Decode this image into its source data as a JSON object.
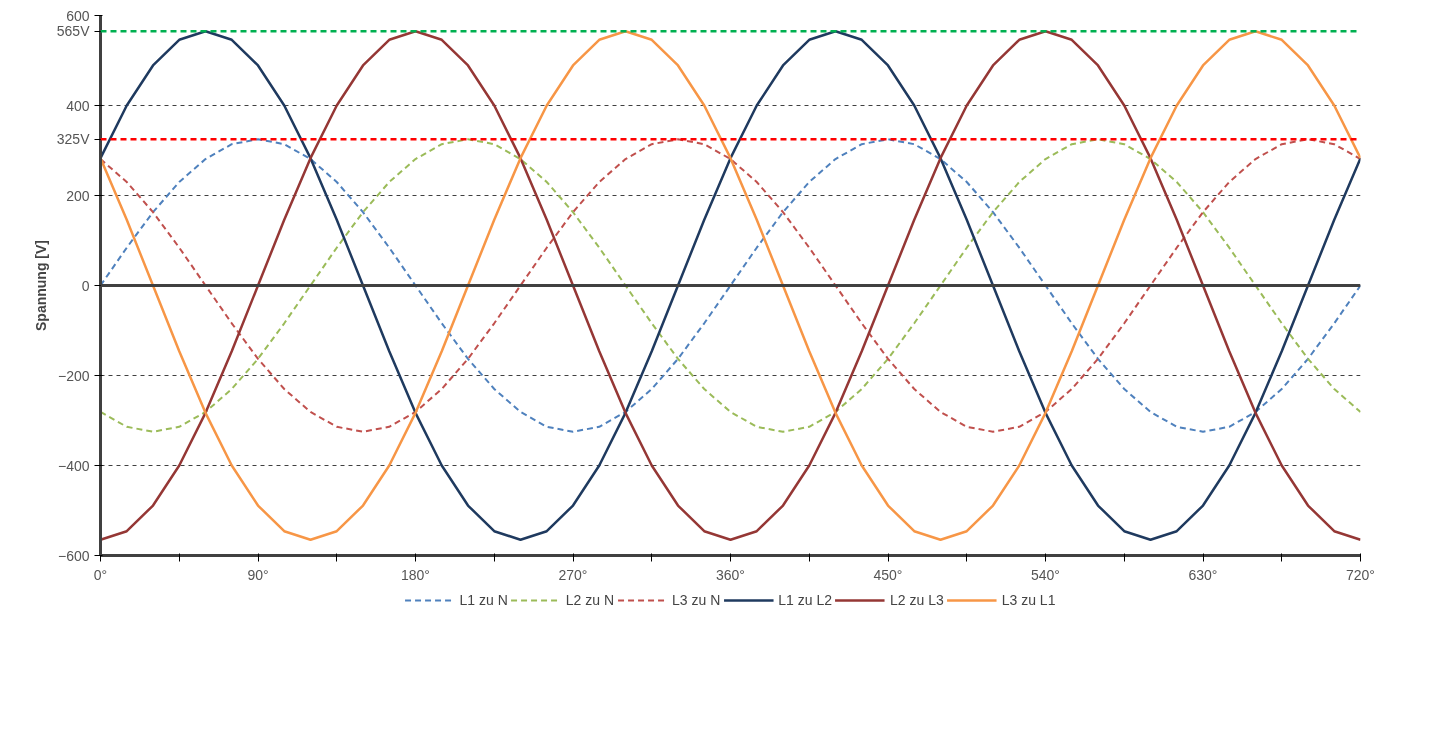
{
  "chart_data": {
    "type": "line",
    "ylabel": "Spannung [V]",
    "x": [
      0,
      15,
      30,
      45,
      60,
      75,
      90,
      105,
      120,
      135,
      150,
      165,
      180,
      195,
      210,
      225,
      240,
      255,
      270,
      285,
      300,
      315,
      330,
      345,
      360,
      375,
      390,
      405,
      420,
      435,
      450,
      465,
      480,
      495,
      510,
      525,
      540,
      555,
      570,
      585,
      600,
      615,
      630,
      645,
      660,
      675,
      690,
      705,
      720
    ],
    "xlim": [
      0,
      720
    ],
    "xticks": [
      {
        "value": 0,
        "label": "0°"
      },
      {
        "value": 45,
        "label": null
      },
      {
        "value": 90,
        "label": "90°"
      },
      {
        "value": 135,
        "label": null
      },
      {
        "value": 180,
        "label": "180°"
      },
      {
        "value": 225,
        "label": null
      },
      {
        "value": 270,
        "label": "270°"
      },
      {
        "value": 315,
        "label": null
      },
      {
        "value": 360,
        "label": "360°"
      },
      {
        "value": 405,
        "label": null
      },
      {
        "value": 450,
        "label": "450°"
      },
      {
        "value": 495,
        "label": null
      },
      {
        "value": 540,
        "label": "540°"
      },
      {
        "value": 585,
        "label": null
      },
      {
        "value": 630,
        "label": "630°"
      },
      {
        "value": 675,
        "label": null
      },
      {
        "value": 720,
        "label": "720°"
      }
    ],
    "ylim": [
      -600,
      600
    ],
    "yticks": [
      -600,
      -400,
      -200,
      0,
      200,
      400,
      600
    ],
    "grid": "y",
    "legend": "bottom",
    "series": [
      {
        "name": "L1 zu N",
        "color": "#4f81bd",
        "line_style": "dashed",
        "values": [
          0,
          84,
          163,
          230,
          281,
          314,
          325,
          314,
          281,
          230,
          163,
          84,
          0,
          -84,
          -163,
          -230,
          -281,
          -314,
          -325,
          -314,
          -281,
          -230,
          -163,
          -84,
          0,
          84,
          163,
          230,
          281,
          314,
          325,
          314,
          281,
          230,
          163,
          84,
          0,
          -84,
          -163,
          -230,
          -281,
          -314,
          -325,
          -314,
          -281,
          -230,
          -163,
          -84,
          0
        ]
      },
      {
        "name": "L2 zu N",
        "color": "#9bbb59",
        "line_style": "dashed",
        "values": [
          -281,
          -314,
          -325,
          -314,
          -281,
          -230,
          -163,
          -84,
          0,
          84,
          163,
          230,
          281,
          314,
          325,
          314,
          281,
          230,
          163,
          84,
          0,
          -84,
          -163,
          -230,
          -281,
          -314,
          -325,
          -314,
          -281,
          -230,
          -163,
          -84,
          0,
          84,
          163,
          230,
          281,
          314,
          325,
          314,
          281,
          230,
          163,
          84,
          0,
          -84,
          -163,
          -230,
          -281
        ]
      },
      {
        "name": "L3 zu N",
        "color": "#c0504d",
        "line_style": "dashed",
        "values": [
          281,
          230,
          163,
          84,
          0,
          -84,
          -163,
          -230,
          -281,
          -314,
          -325,
          -314,
          -281,
          -230,
          -163,
          -84,
          0,
          84,
          163,
          230,
          281,
          314,
          325,
          314,
          281,
          230,
          163,
          84,
          0,
          -84,
          -163,
          -230,
          -281,
          -314,
          -325,
          -314,
          -281,
          -230,
          -163,
          -84,
          0,
          84,
          163,
          230,
          281,
          314,
          325,
          314,
          281
        ]
      },
      {
        "name": "L1 zu L2",
        "color": "#1f3a5f",
        "line_style": "solid",
        "values": [
          283,
          400,
          489,
          546,
          565,
          546,
          489,
          400,
          283,
          146,
          0,
          -146,
          -283,
          -400,
          -489,
          -546,
          -565,
          -546,
          -489,
          -400,
          -283,
          -146,
          0,
          146,
          283,
          400,
          489,
          546,
          565,
          546,
          489,
          400,
          283,
          146,
          0,
          -146,
          -283,
          -400,
          -489,
          -546,
          -565,
          -546,
          -489,
          -400,
          -283,
          -146,
          0,
          146,
          283
        ]
      },
      {
        "name": "L2 zu L3",
        "color": "#953735",
        "line_style": "solid",
        "values": [
          -565,
          -546,
          -489,
          -400,
          -283,
          -146,
          0,
          146,
          283,
          400,
          489,
          546,
          565,
          546,
          489,
          400,
          283,
          146,
          0,
          -146,
          -283,
          -400,
          -489,
          -546,
          -565,
          -546,
          -489,
          -400,
          -283,
          -146,
          0,
          146,
          283,
          400,
          489,
          546,
          565,
          546,
          489,
          400,
          283,
          146,
          0,
          -146,
          -283,
          -400,
          -489,
          -546,
          -565
        ]
      },
      {
        "name": "L3 zu L1",
        "color": "#f79646",
        "line_style": "solid",
        "values": [
          283,
          146,
          0,
          -146,
          -283,
          -400,
          -489,
          -546,
          -565,
          -546,
          -489,
          -400,
          -283,
          -146,
          0,
          146,
          283,
          400,
          489,
          546,
          565,
          546,
          489,
          400,
          283,
          146,
          0,
          -146,
          -283,
          -400,
          -489,
          -546,
          -565,
          -546,
          -489,
          -400,
          -283,
          -146,
          0,
          146,
          283,
          400,
          489,
          546,
          565,
          546,
          489,
          400,
          283
        ]
      }
    ],
    "ref_lines": [
      {
        "axis": "y",
        "value": 565,
        "label": "565V",
        "color": "#00b050",
        "line_style": "dashed"
      },
      {
        "axis": "y",
        "value": 325,
        "label": "325V",
        "color": "#ff0000",
        "line_style": "dashed"
      }
    ]
  }
}
